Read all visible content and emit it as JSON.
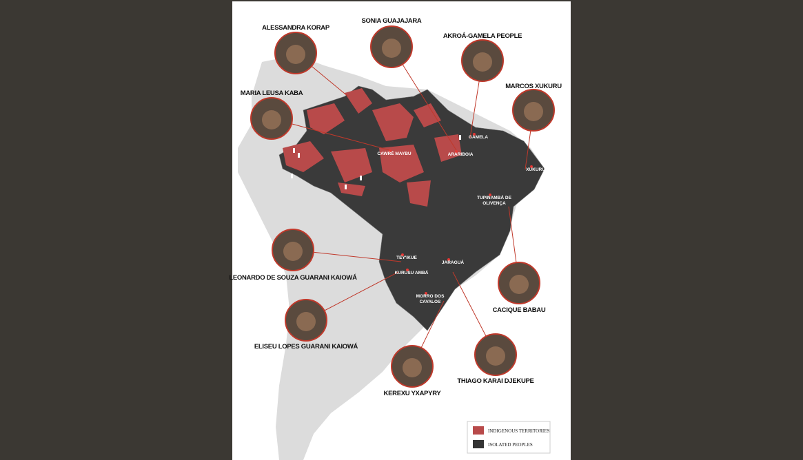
{
  "people": [
    "ALESSANDRA KORAP",
    "SONIA GUAJAJARA",
    "AKROÁ-GAMELA PEOPLE",
    "MARCOS XUKURU",
    "MARIA LEUSA KABA",
    "LEONARDO DE SOUZA GUARANI KAIOWÁ",
    "ELISEU LOPES GUARANI KAIOWÁ",
    "CACIQUE BABAU",
    "KEREXU YXAPYRY",
    "THIAGO KARAI DJEKUPE"
  ],
  "locations": [
    "CAWRÉ MAYBU",
    "ARARIBOIA",
    "GAMELA",
    "XUKURU",
    [
      "TUPINAMBÁ DE",
      "OLIVENÇA"
    ],
    "TEY'IKUE",
    "KURUSU AMBÁ",
    "JARAGUÁ",
    [
      "MORRO DOS",
      "CAVALOS"
    ]
  ],
  "legend": {
    "indigenous_territories": "INDIGENOUS TERRITORIES",
    "isolated_peoples": "ISOLATED PEOPLES"
  }
}
